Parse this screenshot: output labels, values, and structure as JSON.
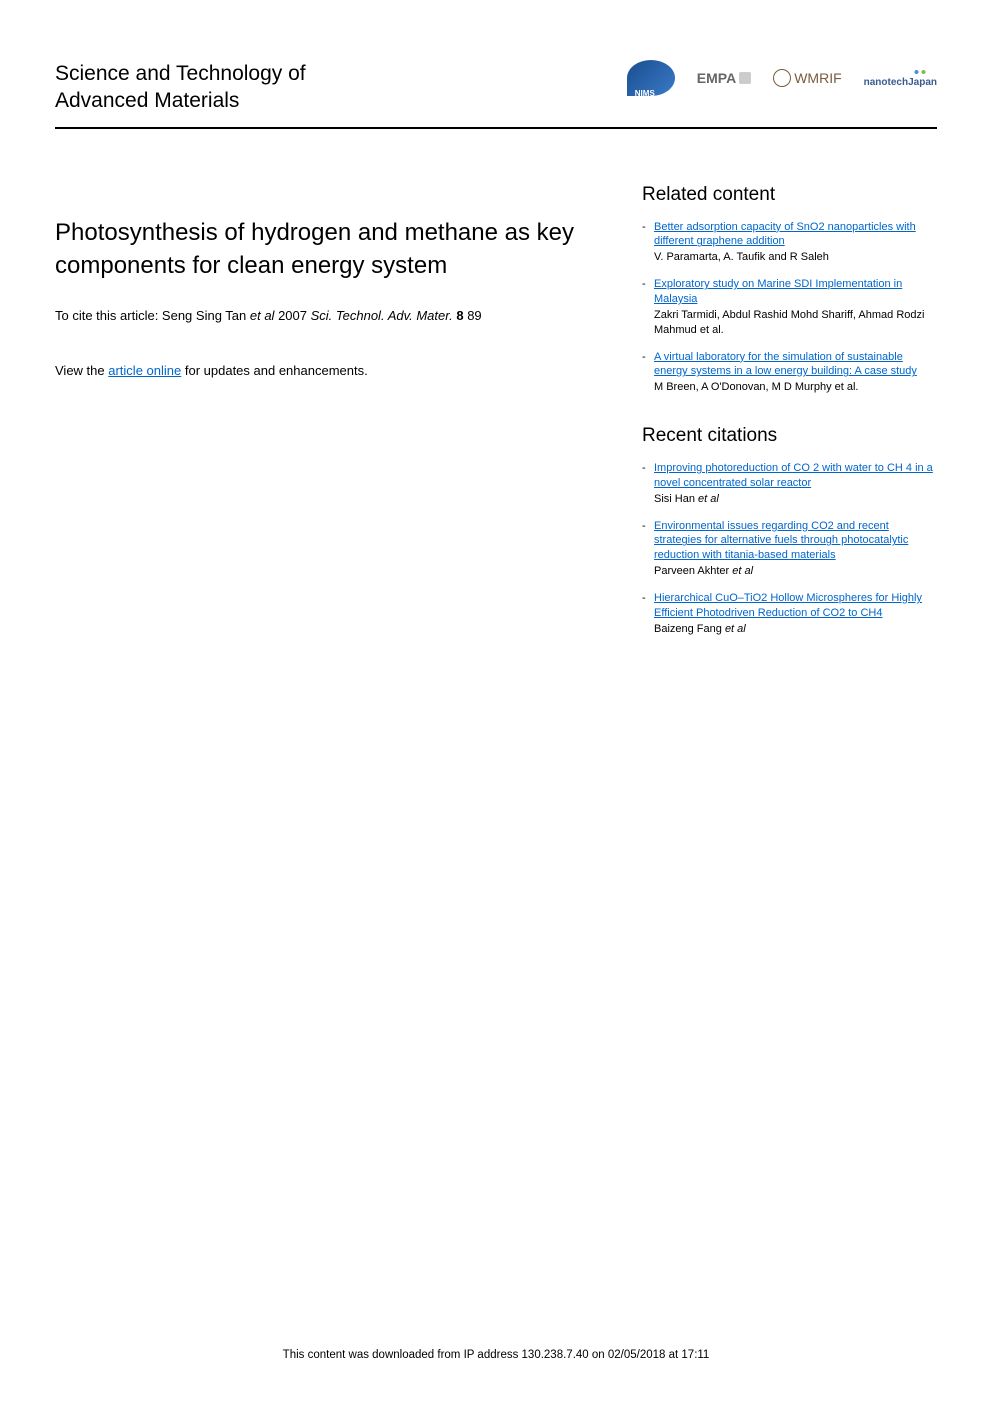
{
  "journal": {
    "title_line1": "Science and Technology of",
    "title_line2": "Advanced Materials"
  },
  "logos": {
    "nims": "NIMS",
    "empa": "EMPA",
    "wmrif": "WMRIF",
    "nanotech": "nanotechJapan"
  },
  "article": {
    "title": "Photosynthesis of hydrogen and methane as key components for clean energy system",
    "citation_prefix": "To cite this article: Seng Sing Tan ",
    "citation_etal": "et al",
    "citation_year": " 2007 ",
    "citation_journal": "Sci. Technol. Adv. Mater.",
    "citation_volume": " 8 ",
    "citation_page": "89",
    "view_prefix": "View the ",
    "view_link": "article online",
    "view_suffix": " for updates and enhancements."
  },
  "related": {
    "heading": "Related content",
    "items": [
      {
        "title": "Better adsorption capacity of SnO2 nanoparticles with different graphene addition",
        "authors": "V. Paramarta, A. Taufik and R Saleh"
      },
      {
        "title": "Exploratory study on Marine SDI Implementation in Malaysia",
        "authors": "Zakri Tarmidi, Abdul Rashid Mohd Shariff, Ahmad Rodzi Mahmud et al."
      },
      {
        "title": "A virtual laboratory for the simulation of sustainable energy systems in a low energy building: A case study",
        "authors": "M Breen, A O'Donovan, M D Murphy et al."
      }
    ]
  },
  "citations": {
    "heading": "Recent citations",
    "items": [
      {
        "title": "Improving photoreduction of CO 2 with water to CH 4 in a novel concentrated solar reactor",
        "authors_prefix": "Sisi Han ",
        "authors_etal": "et al"
      },
      {
        "title": "Environmental issues regarding CO2 and recent strategies for alternative fuels through photocatalytic reduction with titania-based materials",
        "authors_prefix": "Parveen Akhter ",
        "authors_etal": "et al"
      },
      {
        "title": "Hierarchical CuO–TiO2 Hollow Microspheres for Highly Efficient Photodriven Reduction of CO2 to CH4",
        "authors_prefix": "Baizeng Fang ",
        "authors_etal": "et al"
      }
    ]
  },
  "footer": {
    "text": "This content was downloaded from IP address 130.238.7.40 on 02/05/2018 at 17:11"
  }
}
